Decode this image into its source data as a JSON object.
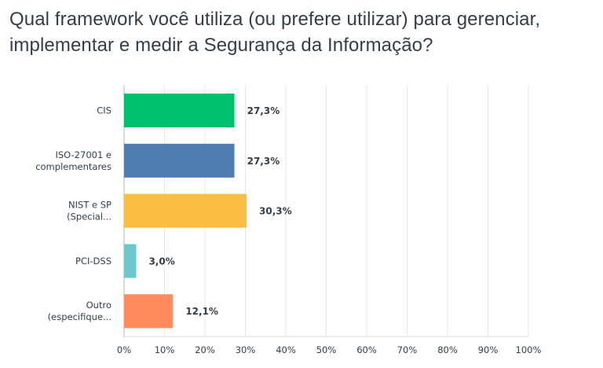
{
  "chart_data": {
    "type": "bar",
    "orientation": "horizontal",
    "title": "Qual framework você utiliza (ou prefere utilizar) para gerenciar, implementar e medir a Segurança da Informação?",
    "categories": [
      [
        "CIS"
      ],
      [
        "ISO-27001 e",
        "complementares"
      ],
      [
        "NIST e SP",
        "(Special..."
      ],
      [
        "PCI-DSS"
      ],
      [
        "Outro",
        "(especifique..."
      ]
    ],
    "values": [
      27.3,
      27.3,
      30.3,
      3.0,
      12.1
    ],
    "value_labels": [
      "27,3%",
      "27,3%",
      "30,3%",
      "3,0%",
      "12,1%"
    ],
    "colors": [
      "#00bf6f",
      "#507cb1",
      "#fbbe44",
      "#6bc8cd",
      "#ff8b5e"
    ],
    "xlim": [
      0,
      100
    ],
    "xticks": [
      "0%",
      "10%",
      "20%",
      "30%",
      "40%",
      "50%",
      "60%",
      "70%",
      "80%",
      "90%",
      "100%"
    ],
    "grid": true,
    "grid_color": "#e8e8e8",
    "xlabel": "",
    "ylabel": ""
  }
}
